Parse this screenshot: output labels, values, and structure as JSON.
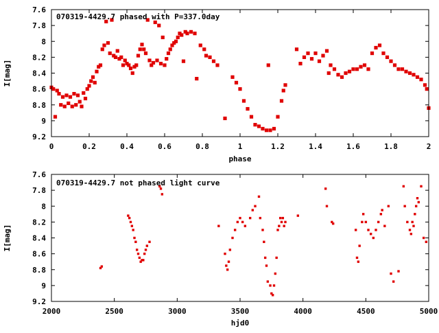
{
  "chart_data": [
    {
      "type": "scatter",
      "title": "070319-4429.7 phased with P=337.0day",
      "xlabel": "phase",
      "ylabel": "I[mag]",
      "xlim": [
        0,
        2
      ],
      "ylim": [
        9.2,
        7.6
      ],
      "y_inverted": true,
      "x_ticks": [
        0,
        0.2,
        0.4,
        0.6,
        0.8,
        1,
        1.2,
        1.4,
        1.6,
        1.8,
        2
      ],
      "x_tick_labels": [
        "0",
        "0.2",
        "0.4",
        "0.6",
        "0.8",
        "1",
        "1.2",
        "1.4",
        "1.6",
        "1.8",
        "2"
      ],
      "y_ticks": [
        7.6,
        7.8,
        8,
        8.2,
        8.4,
        8.6,
        8.8,
        9,
        9.2
      ],
      "y_tick_labels": [
        "7.6",
        "7.8",
        "8",
        "8.2",
        "8.4",
        "8.6",
        "8.8",
        "9",
        "9.2"
      ],
      "marker_color": "#e00000",
      "series": [
        {
          "points": [
            [
              0.0,
              8.58
            ],
            [
              0.01,
              8.6
            ],
            [
              0.02,
              8.95
            ],
            [
              0.03,
              8.62
            ],
            [
              0.04,
              8.66
            ],
            [
              0.05,
              8.8
            ],
            [
              0.06,
              8.7
            ],
            [
              0.07,
              8.82
            ],
            [
              0.08,
              8.68
            ],
            [
              0.09,
              8.78
            ],
            [
              0.1,
              8.7
            ],
            [
              0.11,
              8.82
            ],
            [
              0.12,
              8.66
            ],
            [
              0.13,
              8.8
            ],
            [
              0.14,
              8.68
            ],
            [
              0.15,
              8.76
            ],
            [
              0.16,
              8.82
            ],
            [
              0.17,
              8.65
            ],
            [
              0.18,
              8.72
            ],
            [
              0.19,
              8.6
            ],
            [
              0.2,
              8.56
            ],
            [
              0.21,
              8.5
            ],
            [
              0.22,
              8.45
            ],
            [
              0.23,
              8.52
            ],
            [
              0.24,
              8.38
            ],
            [
              0.25,
              8.32
            ],
            [
              0.26,
              8.3
            ],
            [
              0.27,
              8.1
            ],
            [
              0.28,
              8.05
            ],
            [
              0.29,
              7.75
            ],
            [
              0.3,
              8.02
            ],
            [
              0.31,
              8.15
            ],
            [
              0.32,
              7.73
            ],
            [
              0.33,
              8.18
            ],
            [
              0.34,
              8.2
            ],
            [
              0.35,
              8.12
            ],
            [
              0.36,
              8.22
            ],
            [
              0.37,
              8.2
            ],
            [
              0.38,
              8.3
            ],
            [
              0.39,
              8.24
            ],
            [
              0.4,
              8.28
            ],
            [
              0.41,
              8.3
            ],
            [
              0.42,
              8.34
            ],
            [
              0.43,
              8.4
            ],
            [
              0.44,
              8.32
            ],
            [
              0.45,
              8.3
            ],
            [
              0.46,
              8.18
            ],
            [
              0.47,
              8.1
            ],
            [
              0.48,
              8.04
            ],
            [
              0.49,
              8.1
            ],
            [
              0.5,
              8.15
            ],
            [
              0.51,
              7.73
            ],
            [
              0.52,
              8.24
            ],
            [
              0.53,
              8.3
            ],
            [
              0.54,
              8.27
            ],
            [
              0.55,
              7.76
            ],
            [
              0.56,
              8.24
            ],
            [
              0.57,
              7.8
            ],
            [
              0.58,
              8.28
            ],
            [
              0.59,
              7.95
            ],
            [
              0.6,
              8.3
            ],
            [
              0.61,
              8.22
            ],
            [
              0.62,
              8.15
            ],
            [
              0.63,
              8.1
            ],
            [
              0.64,
              8.05
            ],
            [
              0.65,
              8.02
            ],
            [
              0.66,
              8.0
            ],
            [
              0.67,
              7.95
            ],
            [
              0.68,
              7.9
            ],
            [
              0.69,
              7.92
            ],
            [
              0.7,
              8.25
            ],
            [
              0.71,
              7.88
            ],
            [
              0.72,
              7.9
            ],
            [
              0.74,
              7.88
            ],
            [
              0.76,
              7.9
            ],
            [
              0.77,
              8.47
            ],
            [
              0.79,
              8.05
            ],
            [
              0.81,
              8.1
            ],
            [
              0.82,
              8.18
            ],
            [
              0.84,
              8.2
            ],
            [
              0.86,
              8.25
            ],
            [
              0.88,
              8.3
            ],
            [
              0.92,
              8.97
            ],
            [
              0.96,
              8.45
            ],
            [
              0.98,
              8.52
            ],
            [
              1.0,
              8.6
            ],
            [
              1.02,
              8.75
            ],
            [
              1.04,
              8.85
            ],
            [
              1.06,
              8.95
            ],
            [
              1.08,
              9.05
            ],
            [
              1.1,
              9.07
            ],
            [
              1.12,
              9.1
            ],
            [
              1.14,
              9.12
            ],
            [
              1.15,
              8.3
            ],
            [
              1.16,
              9.12
            ],
            [
              1.18,
              9.1
            ],
            [
              1.2,
              8.95
            ],
            [
              1.22,
              8.75
            ],
            [
              1.23,
              8.62
            ],
            [
              1.24,
              8.55
            ],
            [
              1.3,
              8.1
            ],
            [
              1.32,
              8.28
            ],
            [
              1.34,
              8.2
            ],
            [
              1.36,
              8.15
            ],
            [
              1.38,
              8.22
            ],
            [
              1.4,
              8.15
            ],
            [
              1.42,
              8.25
            ],
            [
              1.44,
              8.18
            ],
            [
              1.46,
              8.12
            ],
            [
              1.47,
              8.4
            ],
            [
              1.48,
              8.3
            ],
            [
              1.5,
              8.35
            ],
            [
              1.52,
              8.42
            ],
            [
              1.54,
              8.45
            ],
            [
              1.56,
              8.4
            ],
            [
              1.58,
              8.38
            ],
            [
              1.6,
              8.35
            ],
            [
              1.62,
              8.35
            ],
            [
              1.64,
              8.32
            ],
            [
              1.66,
              8.3
            ],
            [
              1.68,
              8.35
            ],
            [
              1.7,
              8.15
            ],
            [
              1.72,
              8.08
            ],
            [
              1.74,
              8.05
            ],
            [
              1.76,
              8.15
            ],
            [
              1.78,
              8.2
            ],
            [
              1.8,
              8.25
            ],
            [
              1.82,
              8.3
            ],
            [
              1.84,
              8.35
            ],
            [
              1.86,
              8.35
            ],
            [
              1.88,
              8.38
            ],
            [
              1.9,
              8.4
            ],
            [
              1.92,
              8.42
            ],
            [
              1.94,
              8.45
            ],
            [
              1.96,
              8.48
            ],
            [
              1.98,
              8.55
            ],
            [
              1.99,
              8.6
            ],
            [
              2.0,
              8.84
            ]
          ]
        }
      ]
    },
    {
      "type": "scatter",
      "title": "070319-4429.7 not phased light curve",
      "xlabel": "hjd0",
      "ylabel": "I[mag]",
      "xlim": [
        2000,
        5000
      ],
      "ylim": [
        9.2,
        7.6
      ],
      "y_inverted": true,
      "x_ticks": [
        2000,
        2500,
        3000,
        3500,
        4000,
        4500,
        5000
      ],
      "x_tick_labels": [
        "2000",
        "2500",
        "3000",
        "3500",
        "4000",
        "4500",
        "5000"
      ],
      "y_ticks": [
        7.6,
        7.8,
        8,
        8.2,
        8.4,
        8.6,
        8.8,
        9,
        9.2
      ],
      "y_tick_labels": [
        "7.6",
        "7.8",
        "8",
        "8.2",
        "8.4",
        "8.6",
        "8.8",
        "9",
        "9.2"
      ],
      "marker_color": "#e00000",
      "series": [
        {
          "points": [
            [
              2390,
              8.78
            ],
            [
              2400,
              8.76
            ],
            [
              2610,
              8.12
            ],
            [
              2620,
              8.15
            ],
            [
              2630,
              8.2
            ],
            [
              2640,
              8.25
            ],
            [
              2650,
              8.3
            ],
            [
              2660,
              8.4
            ],
            [
              2670,
              8.45
            ],
            [
              2680,
              8.55
            ],
            [
              2690,
              8.6
            ],
            [
              2700,
              8.65
            ],
            [
              2710,
              8.7
            ],
            [
              2720,
              8.68
            ],
            [
              2730,
              8.68
            ],
            [
              2740,
              8.6
            ],
            [
              2750,
              8.55
            ],
            [
              2760,
              8.5
            ],
            [
              2780,
              8.45
            ],
            [
              2860,
              7.75
            ],
            [
              2870,
              7.78
            ],
            [
              2880,
              7.85
            ],
            [
              3330,
              8.25
            ],
            [
              3380,
              8.6
            ],
            [
              3390,
              8.75
            ],
            [
              3400,
              8.8
            ],
            [
              3410,
              8.7
            ],
            [
              3420,
              8.55
            ],
            [
              3440,
              8.4
            ],
            [
              3460,
              8.3
            ],
            [
              3480,
              8.2
            ],
            [
              3500,
              8.15
            ],
            [
              3520,
              8.2
            ],
            [
              3540,
              8.25
            ],
            [
              3580,
              8.15
            ],
            [
              3600,
              8.05
            ],
            [
              3620,
              8.0
            ],
            [
              3650,
              7.88
            ],
            [
              3660,
              8.15
            ],
            [
              3680,
              8.3
            ],
            [
              3690,
              8.45
            ],
            [
              3700,
              8.65
            ],
            [
              3710,
              8.75
            ],
            [
              3720,
              8.95
            ],
            [
              3740,
              9.0
            ],
            [
              3750,
              9.1
            ],
            [
              3760,
              9.12
            ],
            [
              3770,
              9.0
            ],
            [
              3780,
              8.85
            ],
            [
              3790,
              8.65
            ],
            [
              3800,
              8.3
            ],
            [
              3810,
              8.25
            ],
            [
              3820,
              8.15
            ],
            [
              3830,
              8.2
            ],
            [
              3840,
              8.15
            ],
            [
              3850,
              8.25
            ],
            [
              3860,
              8.2
            ],
            [
              3960,
              8.12
            ],
            [
              4180,
              7.78
            ],
            [
              4190,
              8.0
            ],
            [
              4230,
              8.2
            ],
            [
              4240,
              8.22
            ],
            [
              4420,
              8.3
            ],
            [
              4430,
              8.65
            ],
            [
              4440,
              8.7
            ],
            [
              4450,
              8.5
            ],
            [
              4470,
              8.2
            ],
            [
              4480,
              8.1
            ],
            [
              4500,
              8.2
            ],
            [
              4520,
              8.3
            ],
            [
              4540,
              8.35
            ],
            [
              4560,
              8.4
            ],
            [
              4580,
              8.3
            ],
            [
              4600,
              8.2
            ],
            [
              4620,
              8.1
            ],
            [
              4630,
              8.05
            ],
            [
              4650,
              8.25
            ],
            [
              4680,
              8.0
            ],
            [
              4700,
              8.85
            ],
            [
              4720,
              8.95
            ],
            [
              4760,
              8.82
            ],
            [
              4800,
              7.75
            ],
            [
              4810,
              8.0
            ],
            [
              4830,
              8.2
            ],
            [
              4850,
              8.3
            ],
            [
              4860,
              8.35
            ],
            [
              4870,
              8.2
            ],
            [
              4880,
              8.25
            ],
            [
              4890,
              8.1
            ],
            [
              4900,
              8.0
            ],
            [
              4910,
              7.9
            ],
            [
              4920,
              7.95
            ],
            [
              4940,
              7.75
            ],
            [
              4960,
              8.4
            ],
            [
              4980,
              8.45
            ]
          ]
        }
      ]
    }
  ]
}
